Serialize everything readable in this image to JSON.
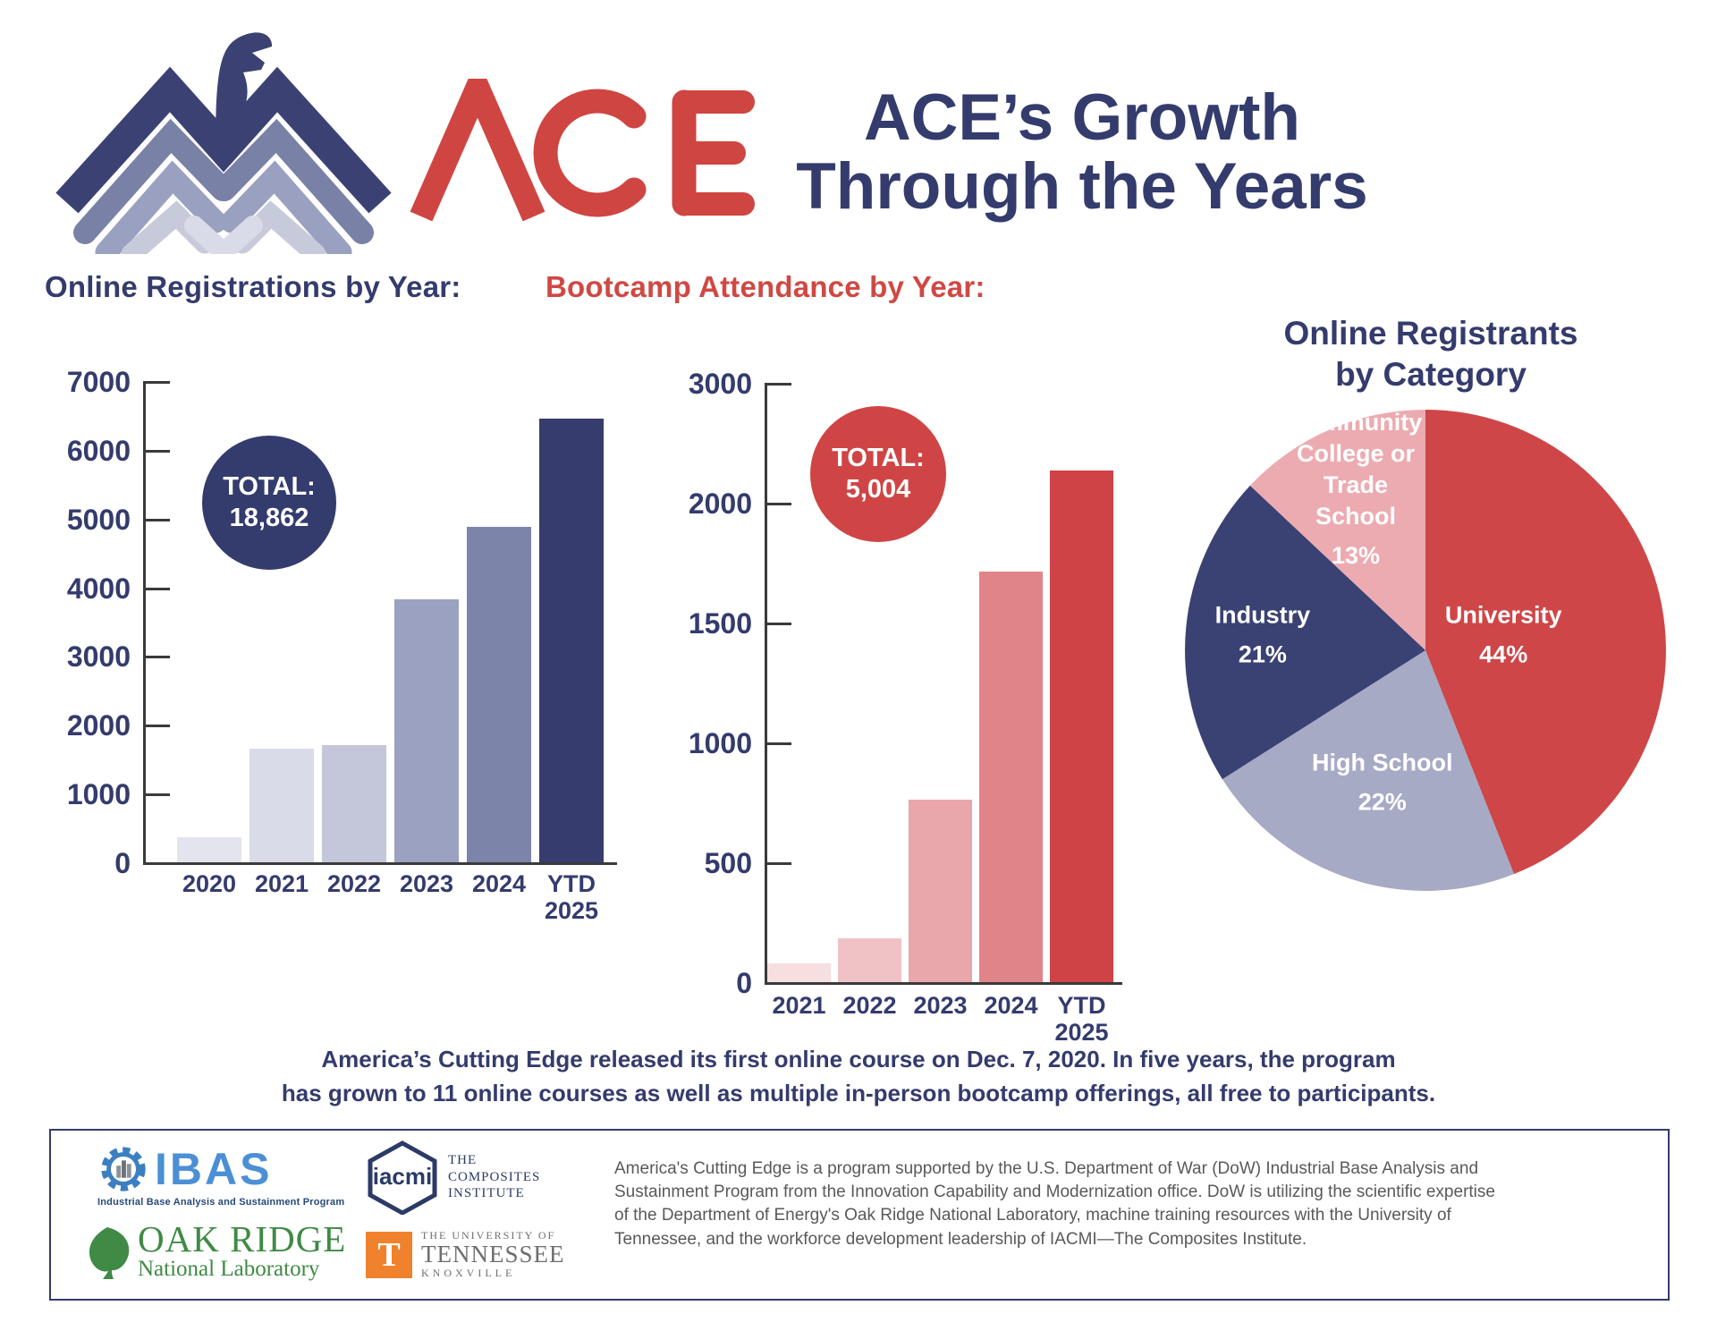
{
  "header": {
    "logo_text": "ACE",
    "title_line1": "ACE’s Growth",
    "title_line2": "Through the Years"
  },
  "colors": {
    "navy": "#343b6d",
    "red": "#cf4545",
    "axis": "#3a3a3a"
  },
  "chart_data": [
    {
      "type": "bar",
      "title": "Online Registrations by Year:",
      "title_color": "#343b6d",
      "total_label": "TOTAL:",
      "total_value": "18,862",
      "total_badge_color": "#343b6d",
      "categories": [
        "2020",
        "2021",
        "2022",
        "2023",
        "2024",
        "YTD\n2025"
      ],
      "values": [
        360,
        1650,
        1700,
        3820,
        4880,
        6452
      ],
      "yticks": [
        0,
        1000,
        2000,
        3000,
        4000,
        5000,
        6000,
        7000
      ],
      "ylim": [
        0,
        7000
      ],
      "grid": "off",
      "bar_colors": [
        "#e3e4ed",
        "#d9dbe8",
        "#c4c7d9",
        "#9ba1c0",
        "#7d84a9",
        "#363d6e"
      ]
    },
    {
      "type": "bar",
      "title": "Bootcamp Attendance by Year:",
      "title_color": "#d04843",
      "total_label": "TOTAL:",
      "total_value": "5,004",
      "total_badge_color": "#cf4545",
      "categories": [
        "2021",
        "2022",
        "2023",
        "2024",
        "YTD\n2025"
      ],
      "values": [
        78,
        183,
        761,
        1713,
        2269
      ],
      "yticks": [
        0,
        500,
        1000,
        1500,
        2000,
        3000
      ],
      "ylim": [
        0,
        3000
      ],
      "grid": "off",
      "axis_note": "ticks evenly spaced as labeled in source image",
      "bar_colors": [
        "#f6dee1",
        "#f0c2c6",
        "#e9a6ab",
        "#e18489",
        "#cf4246"
      ]
    },
    {
      "type": "pie",
      "title": "Online Registrants\nby Category",
      "start_angle_deg": 0,
      "direction": "clockwise",
      "slices": [
        {
          "label": "University",
          "pct": 44,
          "pct_label": "44%",
          "color": "#ce4647",
          "label_r": 0.33
        },
        {
          "label": "High School",
          "pct": 22,
          "pct_label": "22%",
          "color": "#a6aac5",
          "label_r": 0.58
        },
        {
          "label": "Industry",
          "pct": 21,
          "pct_label": "21%",
          "color": "#3a4173",
          "label_r": 0.68
        },
        {
          "label": "Community\nCollege or\nTrade\nSchool",
          "pct": 13,
          "pct_label": "13%",
          "color": "#ecabb1",
          "label_r": 0.73
        }
      ]
    }
  ],
  "note": {
    "text": "America’s Cutting Edge released its first online course on Dec. 7, 2020. In five years, the program\nhas grown to 11 online courses as well as multiple in-person bootcamp offerings, all free to participants."
  },
  "footer": {
    "text": "America's Cutting Edge is a program supported by the U.S. Department of War (DoW) Industrial Base Analysis and\nSustainment Program from the Innovation Capability and Modernization office. DoW is utilizing the scientific expertise\nof the Department of Energy's Oak Ridge National Laboratory, machine training resources with the University of\nTennessee, and the workforce development leadership of IACMI—The Composites Institute.",
    "logos": {
      "ibas": {
        "name": "IBAS",
        "tagline": "Industrial Base Analysis and Sustainment Program"
      },
      "iacmi": {
        "name": "iacmi",
        "tagline": "THE\nCOMPOSITES\nINSTITUTE"
      },
      "ornl": {
        "line1": "OAK RIDGE",
        "line2": "National Laboratory"
      },
      "utk": {
        "t": "T",
        "line1": "THE UNIVERSITY OF",
        "line2": "TENNESSEE",
        "line3": "KNOXVILLE"
      }
    }
  }
}
